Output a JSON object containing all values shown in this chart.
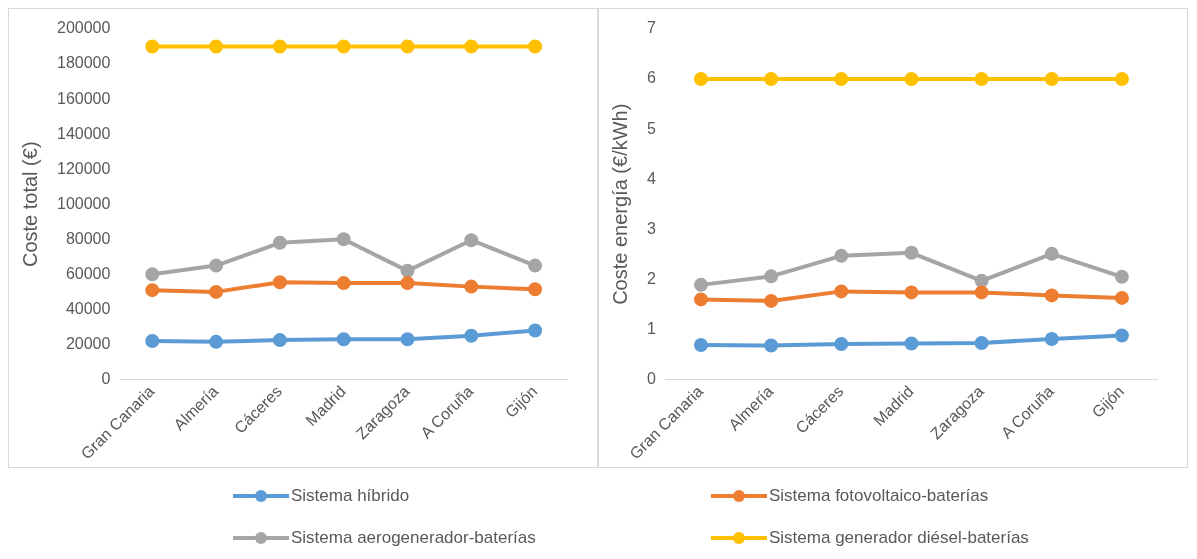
{
  "chart_data": [
    {
      "type": "line",
      "ylabel": "Coste total (€)",
      "categories": [
        "Gran Canaria",
        "Almería",
        "Cáceres",
        "Madrid",
        "Zaragoza",
        "A Coruña",
        "Gijón"
      ],
      "ylim": [
        0,
        200000
      ],
      "yticks": [
        0,
        20000,
        40000,
        60000,
        80000,
        100000,
        120000,
        140000,
        160000,
        180000,
        200000
      ],
      "grid": false,
      "legend": "bottom",
      "marker": "circle",
      "series": [
        {
          "name": "Sistema híbrido",
          "color": "#5b9bd5",
          "values": [
            22000,
            21500,
            22500,
            23000,
            23000,
            25000,
            28000
          ]
        },
        {
          "name": "Sistema fotovoltaico-baterías",
          "color": "#ed7d31",
          "values": [
            51000,
            50000,
            55500,
            55000,
            55000,
            53000,
            51500
          ]
        },
        {
          "name": "Sistema aerogenerador-baterías",
          "color": "#a5a5a5",
          "values": [
            60000,
            65000,
            78000,
            80000,
            62000,
            79500,
            65000
          ]
        },
        {
          "name": "Sistema generador diésel-baterías",
          "color": "#ffc000",
          "values": [
            190000,
            190000,
            190000,
            190000,
            190000,
            190000,
            190000
          ]
        }
      ]
    },
    {
      "type": "line",
      "ylabel": "Coste energía (€/kWh)",
      "categories": [
        "Gran Canaria",
        "Almería",
        "Cáceres",
        "Madrid",
        "Zaragoza",
        "A Coruña",
        "Gijón"
      ],
      "ylim": [
        0,
        7
      ],
      "yticks": [
        0,
        1,
        2,
        3,
        4,
        5,
        6,
        7
      ],
      "grid": false,
      "marker": "circle",
      "series": [
        {
          "color": "#5b9bd5",
          "values": [
            0.69,
            0.68,
            0.71,
            0.72,
            0.73,
            0.81,
            0.88
          ]
        },
        {
          "color": "#ed7d31",
          "values": [
            1.6,
            1.57,
            1.76,
            1.74,
            1.74,
            1.68,
            1.63
          ]
        },
        {
          "color": "#a5a5a5",
          "values": [
            1.89,
            2.06,
            2.47,
            2.53,
            1.97,
            2.51,
            2.05
          ]
        },
        {
          "color": "#ffc000",
          "values": [
            6,
            6,
            6,
            6,
            6,
            6,
            6
          ]
        }
      ]
    }
  ]
}
